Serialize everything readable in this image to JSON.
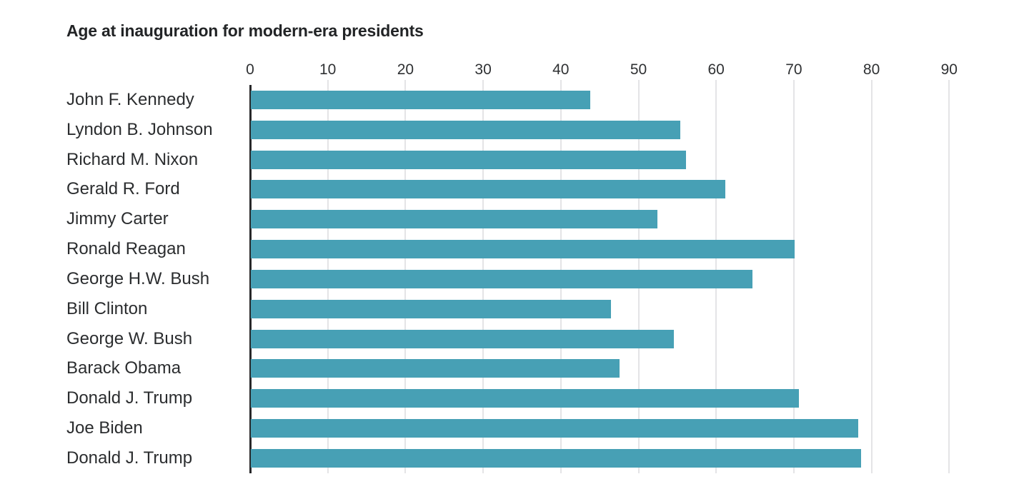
{
  "title": "Age at inauguration for modern-era presidents",
  "chart_data": {
    "type": "bar",
    "orientation": "horizontal",
    "title": "Age at inauguration for modern-era presidents",
    "xlabel": "",
    "ylabel": "",
    "categories": [
      "John F. Kennedy",
      "Lyndon B. Johnson",
      "Richard M. Nixon",
      "Gerald R. Ford",
      "Jimmy Carter",
      "Ronald Reagan",
      "George H.W. Bush",
      "Bill Clinton",
      "George W. Bush",
      "Barack Obama",
      "Donald J. Trump",
      "Joe Biden",
      "Donald J. Trump"
    ],
    "values": [
      43.7,
      55.3,
      56.0,
      61.1,
      52.3,
      70.0,
      64.6,
      46.4,
      54.5,
      47.5,
      70.6,
      78.2,
      78.6
    ],
    "x_ticks": [
      0,
      10,
      20,
      30,
      40,
      50,
      60,
      70,
      80,
      90
    ],
    "xlim": [
      0,
      97.7
    ],
    "grid": "vertical-gridlines-behind-bars",
    "legend": "none",
    "bar_color": "#47a0b5",
    "axis_line_color": "#28282a",
    "gridline_color": "#e4e4e6",
    "text_color": "#2b2d2f"
  }
}
